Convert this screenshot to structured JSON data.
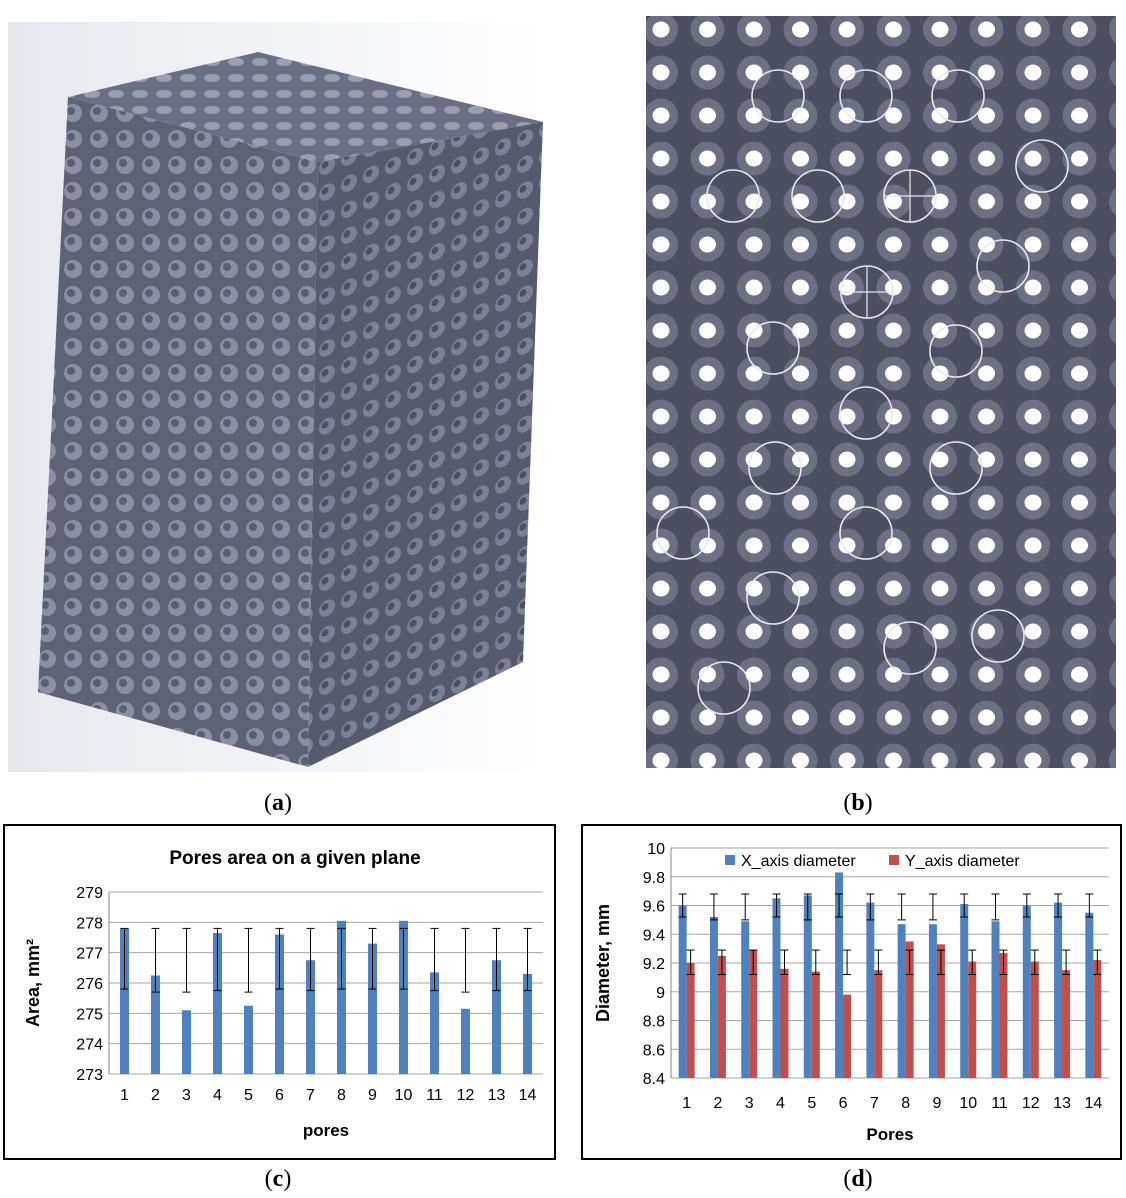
{
  "captions": {
    "a": {
      "open": "(",
      "letter": "a",
      "close": ")"
    },
    "b": {
      "open": "(",
      "letter": "b",
      "close": ")"
    },
    "c": {
      "open": "(",
      "letter": "c",
      "close": ")"
    },
    "d": {
      "open": "(",
      "letter": "d",
      "close": ")"
    }
  },
  "colors": {
    "lattice": "#6f7488",
    "lattice_dark": "#3e4150",
    "blue_bar": "#4f81bd",
    "red_bar": "#c0504d"
  },
  "chart_data": [
    {
      "type": "bar",
      "title": "Pores area on a given plane",
      "xlabel": "pores",
      "ylabel": "Area, mm²",
      "ylim": [
        273,
        279
      ],
      "yticks": [
        "273",
        "274",
        "275",
        "276",
        "277",
        "278",
        "279"
      ],
      "categories": [
        "1",
        "2",
        "3",
        "4",
        "5",
        "6",
        "7",
        "8",
        "9",
        "10",
        "11",
        "12",
        "13",
        "14"
      ],
      "values": [
        277.8,
        276.25,
        275.1,
        277.65,
        275.25,
        277.6,
        276.75,
        278.05,
        277.3,
        278.05,
        276.35,
        275.15,
        276.75,
        276.3
      ],
      "error_top": [
        277.8,
        277.8,
        277.8,
        277.8,
        277.8,
        277.8,
        277.8,
        277.8,
        277.8,
        277.8,
        277.8,
        277.8,
        277.8,
        277.8
      ],
      "error_bottom": [
        275.8,
        275.7,
        275.7,
        275.75,
        275.7,
        275.8,
        275.75,
        275.8,
        275.8,
        275.8,
        275.75,
        275.7,
        275.75,
        275.75
      ],
      "grid": true,
      "legend": "none"
    },
    {
      "type": "bar",
      "title": "",
      "xlabel": "Pores",
      "ylabel": "Diameter, mm",
      "ylim": [
        8.4,
        10
      ],
      "yticks": [
        "8.4",
        "8.6",
        "8.8",
        "9",
        "9.2",
        "9.4",
        "9.6",
        "9.8",
        "10"
      ],
      "categories": [
        "1",
        "2",
        "3",
        "4",
        "5",
        "6",
        "7",
        "8",
        "9",
        "10",
        "11",
        "12",
        "13",
        "14"
      ],
      "series": [
        {
          "name": "X_axis diameter",
          "values": [
            9.6,
            9.52,
            9.49,
            9.65,
            9.67,
            9.83,
            9.62,
            9.47,
            9.47,
            9.61,
            9.49,
            9.6,
            9.62,
            9.55
          ],
          "err_high": [
            9.68,
            9.68,
            9.68,
            9.68,
            9.68,
            9.68,
            9.68,
            9.68,
            9.68,
            9.68,
            9.68,
            9.68,
            9.68,
            9.68
          ],
          "err_low": [
            9.52,
            9.5,
            9.5,
            9.52,
            9.5,
            9.52,
            9.5,
            9.5,
            9.5,
            9.52,
            9.5,
            9.52,
            9.52,
            9.52
          ]
        },
        {
          "name": "Y_axis diameter",
          "values": [
            9.2,
            9.25,
            9.29,
            9.16,
            9.14,
            8.98,
            9.15,
            9.35,
            9.33,
            9.21,
            9.27,
            9.21,
            9.15,
            9.22
          ],
          "err_high": [
            9.29,
            9.29,
            9.29,
            9.29,
            9.29,
            9.29,
            9.29,
            9.29,
            9.29,
            9.29,
            9.29,
            9.29,
            9.29,
            9.29
          ],
          "err_low": [
            9.12,
            9.12,
            9.12,
            9.12,
            9.12,
            9.12,
            9.12,
            9.12,
            9.12,
            9.12,
            9.12,
            9.12,
            9.12,
            9.12
          ]
        }
      ],
      "grid": true,
      "legend": "top"
    }
  ]
}
